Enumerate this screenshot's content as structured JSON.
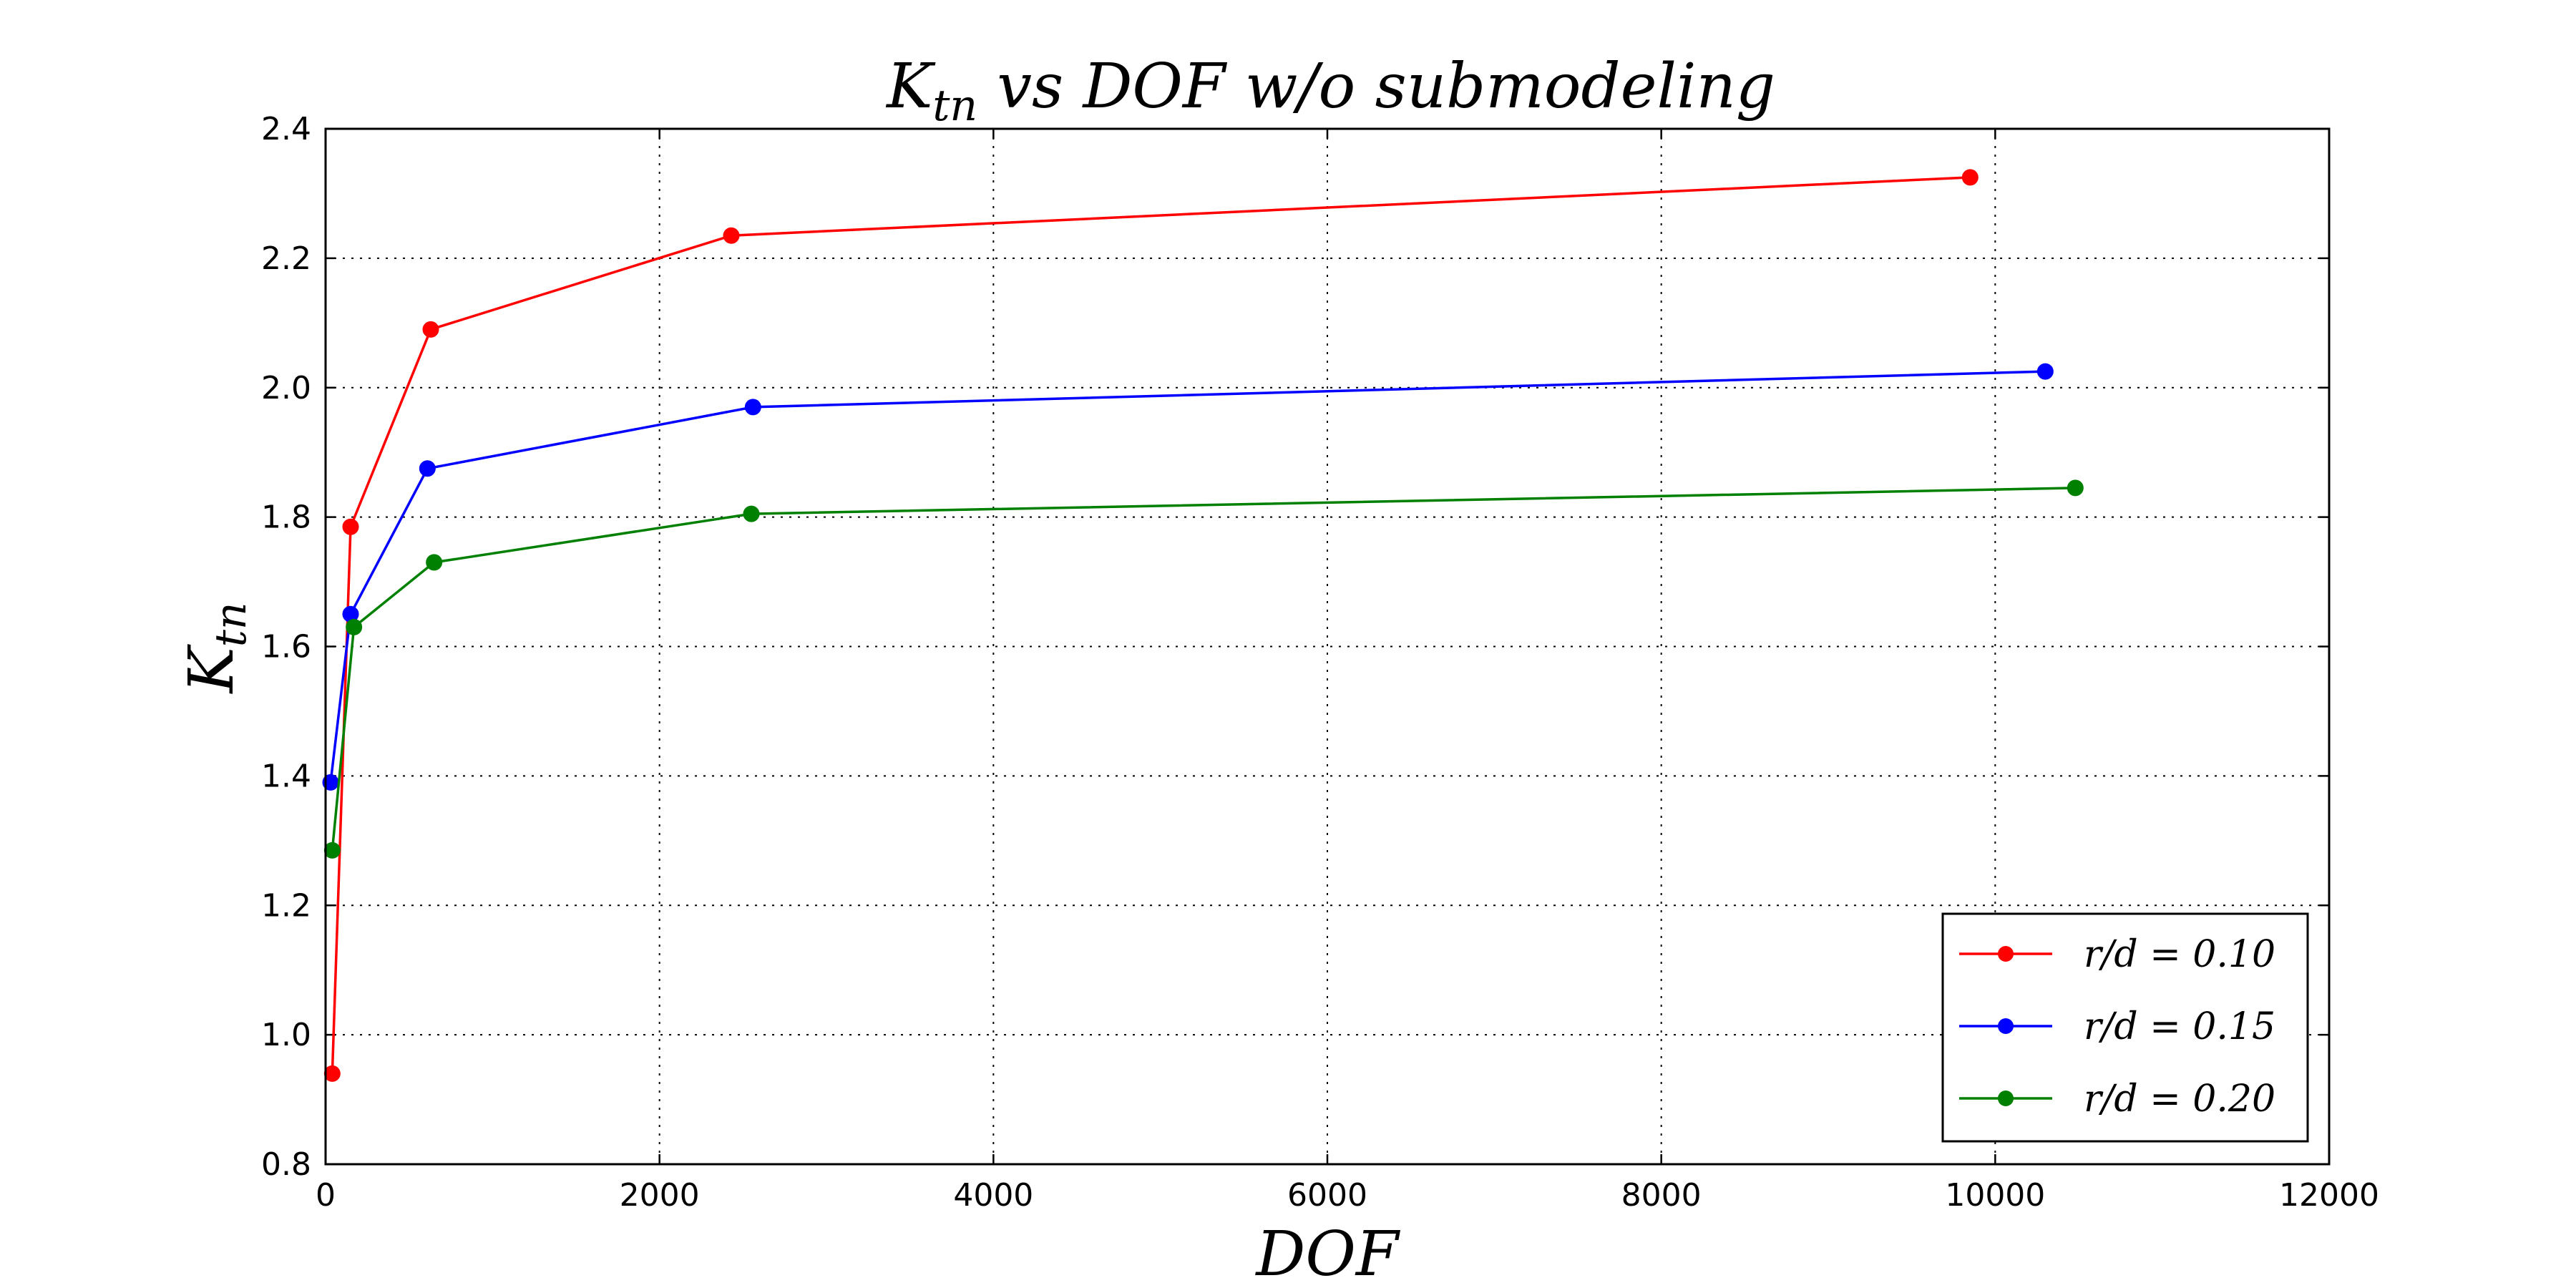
{
  "chart_data": {
    "type": "line",
    "title_main": "K",
    "title_sub": "tn",
    "title_rest": " vs DOF w/o submodeling",
    "xlabel": "DOF",
    "ylabel_main": "K",
    "ylabel_sub": "tn",
    "xlim": [
      0,
      12000
    ],
    "ylim": [
      0.8,
      2.4
    ],
    "xticks": [
      0,
      2000,
      4000,
      6000,
      8000,
      10000,
      12000
    ],
    "yticks": [
      0.8,
      1.0,
      1.2,
      1.4,
      1.6,
      1.8,
      2.0,
      2.2,
      2.4
    ],
    "xtick_labels": [
      "0",
      "2000",
      "4000",
      "6000",
      "8000",
      "10000",
      "12000"
    ],
    "ytick_labels": [
      "0.8",
      "1.0",
      "1.2",
      "1.4",
      "1.6",
      "1.8",
      "2.0",
      "2.2",
      "2.4"
    ],
    "grid": true,
    "legend_position": "lower-right",
    "series": [
      {
        "name": "r/d = 0.10",
        "legend_label": "r/d = 0.10",
        "color": "#ff0000",
        "x": [
          40,
          150,
          630,
          2430,
          9850
        ],
        "y": [
          0.94,
          1.785,
          2.09,
          2.235,
          2.325
        ]
      },
      {
        "name": "r/d = 0.15",
        "legend_label": "r/d = 0.15",
        "color": "#0000ff",
        "x": [
          30,
          150,
          610,
          2560,
          10300
        ],
        "y": [
          1.39,
          1.65,
          1.875,
          1.97,
          2.025
        ]
      },
      {
        "name": "r/d = 0.20",
        "legend_label": "r/d = 0.20",
        "color": "#008000",
        "x": [
          40,
          170,
          650,
          2550,
          10480
        ],
        "y": [
          1.285,
          1.63,
          1.73,
          1.805,
          1.845
        ]
      }
    ]
  }
}
